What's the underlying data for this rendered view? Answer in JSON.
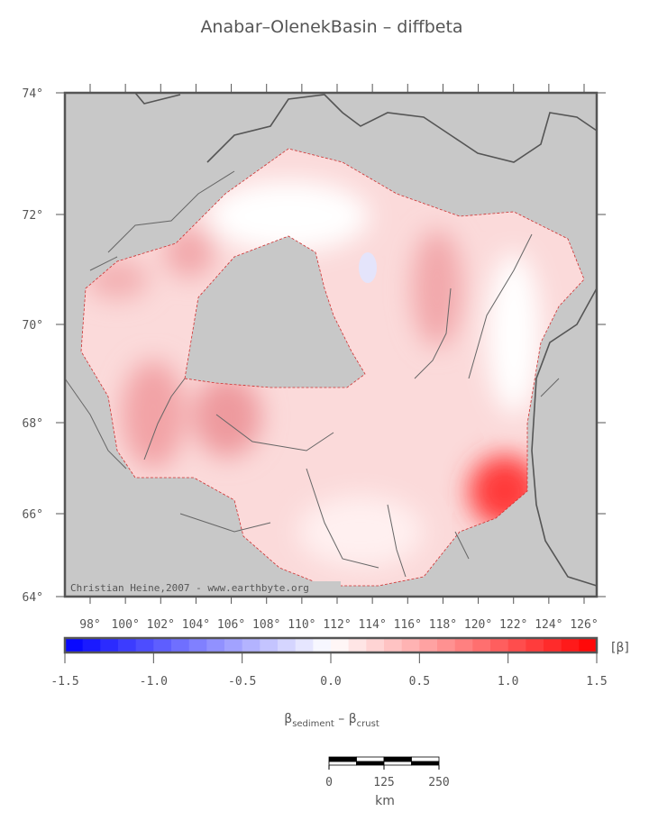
{
  "title": "Anabar–OlenekBasin – diffbeta",
  "map": {
    "lat_labels": [
      "74°",
      "72°",
      "70°",
      "68°",
      "66°",
      "64°"
    ],
    "lon_labels": [
      "98°",
      "100°",
      "102°",
      "104°",
      "106°",
      "108°",
      "110°",
      "112°",
      "114°",
      "116°",
      "118°",
      "120°",
      "122°",
      "124°",
      "126°"
    ],
    "credit": "Christian Heine,2007 - www.earthbyte.org"
  },
  "colorbar": {
    "lim": [
      -1.5,
      1.5
    ],
    "ticks": [
      -1.5,
      {
        "value": -1.0,
        "label": "-1.0"
      },
      -0.5,
      {
        "value": 0.0,
        "label": "0.0"
      },
      0.5,
      {
        "value": 1.0,
        "label": "1.0"
      },
      1.5
    ],
    "unit": "[β]",
    "label_parts": [
      "β",
      "sediment",
      " – β",
      "crust"
    ]
  },
  "scalebar": {
    "ticks": [
      0,
      125,
      250
    ],
    "unit": "km"
  }
}
